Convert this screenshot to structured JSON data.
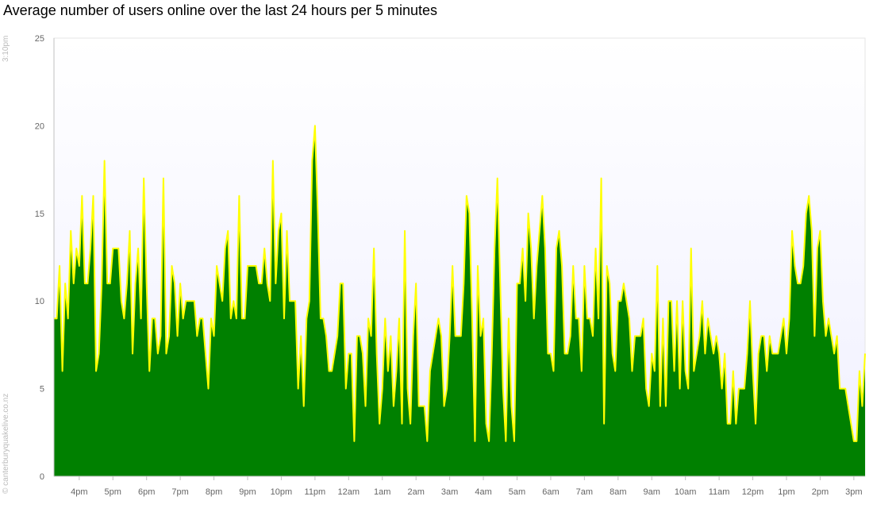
{
  "title": "Average number of users online over the last 24 hours per 5 minutes",
  "timestamp": "3:10pm",
  "copyright": "© canterburyquakelive.co.nz",
  "colors": {
    "fill": "#008000",
    "line": "#ffff00",
    "plot_bg_top": "#ffffff",
    "plot_bg_bottom": "#f0f0ff"
  },
  "chart_data": {
    "type": "area",
    "title": "Average number of users online over the last 24 hours per 5 minutes",
    "xlabel": "",
    "ylabel": "",
    "ylim": [
      0,
      25
    ],
    "yticks": [
      0,
      5,
      10,
      15,
      20,
      25
    ],
    "grid": false,
    "xticks": [
      "4pm",
      "5pm",
      "6pm",
      "7pm",
      "8pm",
      "9pm",
      "10pm",
      "11pm",
      "12am",
      "1am",
      "2am",
      "3am",
      "4am",
      "5am",
      "6am",
      "7am",
      "8am",
      "9am",
      "10am",
      "11am",
      "12pm",
      "1pm",
      "2pm",
      "3pm"
    ],
    "first_tick_index": 9,
    "points_per_hour": 12,
    "series": [
      {
        "values": [
          9,
          9,
          12,
          6,
          11,
          9,
          14,
          11,
          13,
          12,
          16,
          11,
          11,
          13,
          16,
          6,
          7,
          11,
          18,
          11,
          11,
          13,
          13,
          13,
          10,
          9,
          11,
          14,
          7,
          11,
          13,
          9,
          17,
          11,
          6,
          9,
          9,
          7,
          8,
          17,
          7,
          8,
          12,
          11,
          8,
          11,
          9,
          10,
          10,
          10,
          10,
          8,
          9,
          9,
          7,
          5,
          9,
          8,
          12,
          11,
          10,
          13,
          14,
          9,
          10,
          9,
          16,
          9,
          9,
          12,
          12,
          12,
          12,
          11,
          11,
          13,
          11,
          10,
          18,
          11,
          14,
          15,
          9,
          14,
          10,
          10,
          10,
          5,
          8,
          4,
          9,
          10,
          18,
          20,
          15,
          9,
          9,
          8,
          6,
          6,
          7,
          8,
          11,
          11,
          5,
          7,
          7,
          2,
          8,
          8,
          7,
          4,
          9,
          8,
          13,
          7,
          3,
          5,
          9,
          6,
          8,
          4,
          6,
          9,
          3,
          14,
          5,
          3,
          8,
          11,
          4,
          4,
          4,
          2,
          6,
          7,
          8,
          9,
          8,
          4,
          5,
          8,
          12,
          8,
          8,
          8,
          11,
          16,
          15,
          9,
          2,
          12,
          8,
          9,
          3,
          2,
          7,
          13,
          17,
          11,
          5,
          2,
          9,
          4,
          2,
          11,
          11,
          13,
          10,
          15,
          13,
          9,
          12,
          14,
          16,
          13,
          7,
          7,
          6,
          13,
          14,
          12,
          7,
          7,
          8,
          12,
          9,
          9,
          6,
          12,
          9,
          9,
          8,
          13,
          9,
          17,
          3,
          12,
          11,
          7,
          6,
          10,
          10,
          11,
          10,
          9,
          6,
          8,
          8,
          8,
          9,
          5,
          4,
          7,
          6,
          12,
          4,
          9,
          4,
          10,
          10,
          6,
          10,
          5,
          10,
          6,
          5,
          13,
          6,
          7,
          8,
          10,
          7,
          9,
          8,
          7,
          8,
          7,
          5,
          7,
          3,
          3,
          6,
          3,
          5,
          5,
          5,
          7,
          10,
          6,
          3,
          7,
          8,
          8,
          6,
          8,
          7,
          7,
          7,
          8,
          9,
          7,
          9,
          14,
          12,
          11,
          11,
          12,
          15,
          16,
          14,
          8,
          13,
          14,
          10,
          8,
          9,
          8,
          7,
          8,
          5,
          5,
          5,
          4,
          3,
          2,
          2,
          6,
          4,
          7
        ]
      }
    ]
  }
}
